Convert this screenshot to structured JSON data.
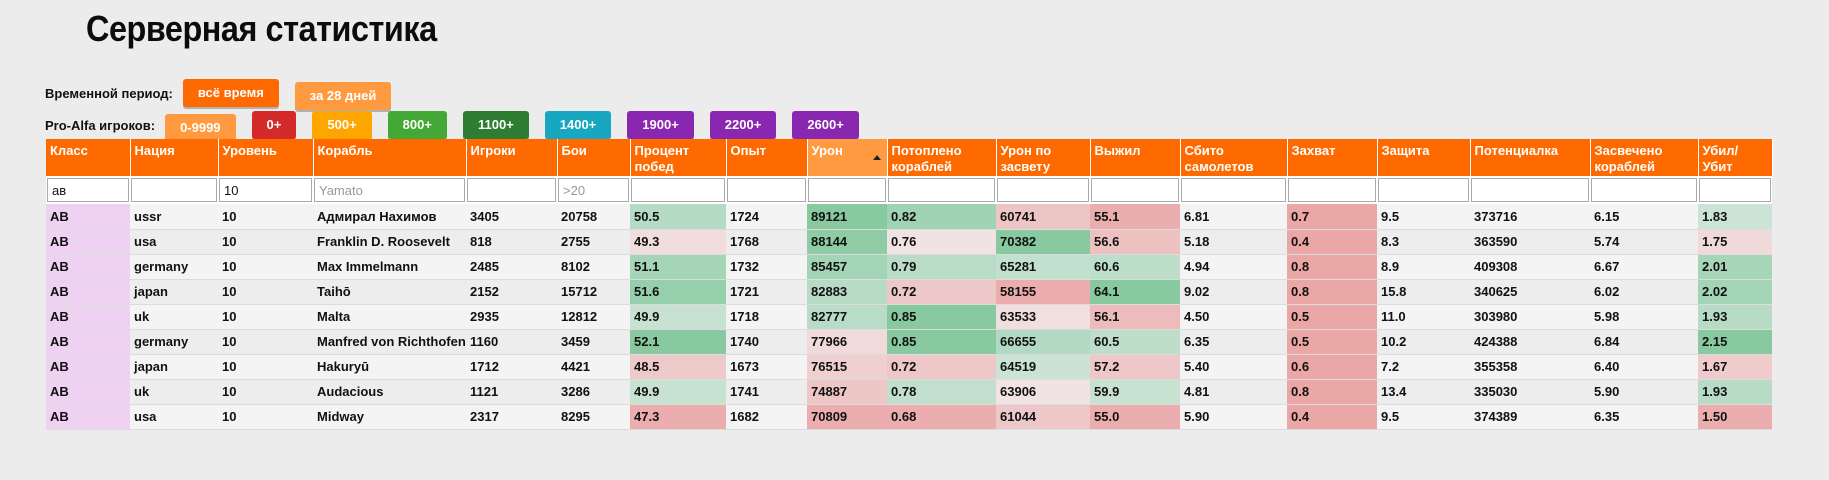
{
  "page": {
    "title": "Серверная статистика"
  },
  "filters": {
    "period": {
      "label": "Временной период:",
      "options": [
        {
          "label": "всё время",
          "color": "#ff6a00",
          "active": true
        },
        {
          "label": "за 28 дней",
          "color": "#ff9a40",
          "active": false
        }
      ]
    },
    "players": {
      "label": "Pro-Alfa игроков:",
      "options": [
        {
          "label": "0-9999",
          "color": "#ff9a40"
        },
        {
          "label": "0+",
          "color": "#d42a2a"
        },
        {
          "label": "500+",
          "color": "#ffa500"
        },
        {
          "label": "800+",
          "color": "#43a835"
        },
        {
          "label": "1100+",
          "color": "#2e7d32"
        },
        {
          "label": "1400+",
          "color": "#17a7c0"
        },
        {
          "label": "1900+",
          "color": "#8a27b0"
        },
        {
          "label": "2200+",
          "color": "#8a27b0"
        },
        {
          "label": "2600+",
          "color": "#8a27b0"
        }
      ]
    }
  },
  "table": {
    "columns": [
      {
        "key": "class",
        "label": "Класс"
      },
      {
        "key": "nation",
        "label": "Нация"
      },
      {
        "key": "tier",
        "label": "Уровень"
      },
      {
        "key": "ship",
        "label": "Корабль"
      },
      {
        "key": "players",
        "label": "Игроки"
      },
      {
        "key": "battles",
        "label": "Бои"
      },
      {
        "key": "winrate",
        "label": "Процент побед"
      },
      {
        "key": "exp",
        "label": "Опыт"
      },
      {
        "key": "damage",
        "label": "Урон",
        "sorted": true
      },
      {
        "key": "sunk",
        "label": "Потоплено кораблей"
      },
      {
        "key": "spotdmg",
        "label": "Урон по засвету"
      },
      {
        "key": "survived",
        "label": "Выжил"
      },
      {
        "key": "planes",
        "label": "Сбито самолетов"
      },
      {
        "key": "capture",
        "label": "Захват"
      },
      {
        "key": "defense",
        "label": "Защита"
      },
      {
        "key": "potential",
        "label": "Потенциалка"
      },
      {
        "key": "spotted",
        "label": "Засвечено кораблей"
      },
      {
        "key": "kd",
        "label": "Убил/ Убит"
      }
    ],
    "filter_values": {
      "class": "ав",
      "nation": "",
      "tier": "10",
      "ship": "",
      "players": "",
      "battles": ""
    },
    "filter_placeholders": {
      "ship": "Yamato",
      "battles": ">20"
    },
    "rows": [
      [
        "АВ",
        "ussr",
        "10",
        "Адмирал Нахимов",
        "3405",
        "20758",
        "50.5",
        "1724",
        "89121",
        "0.82",
        "60741",
        "55.1",
        "6.81",
        "0.7",
        "9.5",
        "373716",
        "6.15",
        "1.83"
      ],
      [
        "АВ",
        "usa",
        "10",
        "Franklin D. Roosevelt",
        "818",
        "2755",
        "49.3",
        "1768",
        "88144",
        "0.76",
        "70382",
        "56.6",
        "5.18",
        "0.4",
        "8.3",
        "363590",
        "5.74",
        "1.75"
      ],
      [
        "АВ",
        "germany",
        "10",
        "Max Immelmann",
        "2485",
        "8102",
        "51.1",
        "1732",
        "85457",
        "0.79",
        "65281",
        "60.6",
        "4.94",
        "0.8",
        "8.9",
        "409308",
        "6.67",
        "2.01"
      ],
      [
        "АВ",
        "japan",
        "10",
        "Taihō",
        "2152",
        "15712",
        "51.6",
        "1721",
        "82883",
        "0.72",
        "58155",
        "64.1",
        "9.02",
        "0.8",
        "15.8",
        "340625",
        "6.02",
        "2.02"
      ],
      [
        "АВ",
        "uk",
        "10",
        "Malta",
        "2935",
        "12812",
        "49.9",
        "1718",
        "82777",
        "0.85",
        "63533",
        "56.1",
        "4.50",
        "0.5",
        "11.0",
        "303980",
        "5.98",
        "1.93"
      ],
      [
        "АВ",
        "germany",
        "10",
        "Manfred von Richthofen",
        "1160",
        "3459",
        "52.1",
        "1740",
        "77966",
        "0.85",
        "66655",
        "60.5",
        "6.35",
        "0.5",
        "10.2",
        "424388",
        "6.84",
        "2.15"
      ],
      [
        "АВ",
        "japan",
        "10",
        "Hakuryū",
        "1712",
        "4421",
        "48.5",
        "1673",
        "76515",
        "0.72",
        "64519",
        "57.2",
        "5.40",
        "0.6",
        "7.2",
        "355358",
        "6.40",
        "1.67"
      ],
      [
        "АВ",
        "uk",
        "10",
        "Audacious",
        "1121",
        "3286",
        "49.9",
        "1741",
        "74887",
        "0.78",
        "63906",
        "59.9",
        "4.81",
        "0.8",
        "13.4",
        "335030",
        "5.90",
        "1.93"
      ],
      [
        "АВ",
        "usa",
        "10",
        "Midway",
        "2317",
        "8295",
        "47.3",
        "1682",
        "70809",
        "0.68",
        "61044",
        "55.0",
        "5.90",
        "0.4",
        "9.5",
        "374389",
        "6.35",
        "1.50"
      ]
    ],
    "colors": {
      "class_cell": "#efd1f2",
      "good": "#5ab77d",
      "bad": "#e57373",
      "neutral": "#f3f3f3"
    }
  }
}
